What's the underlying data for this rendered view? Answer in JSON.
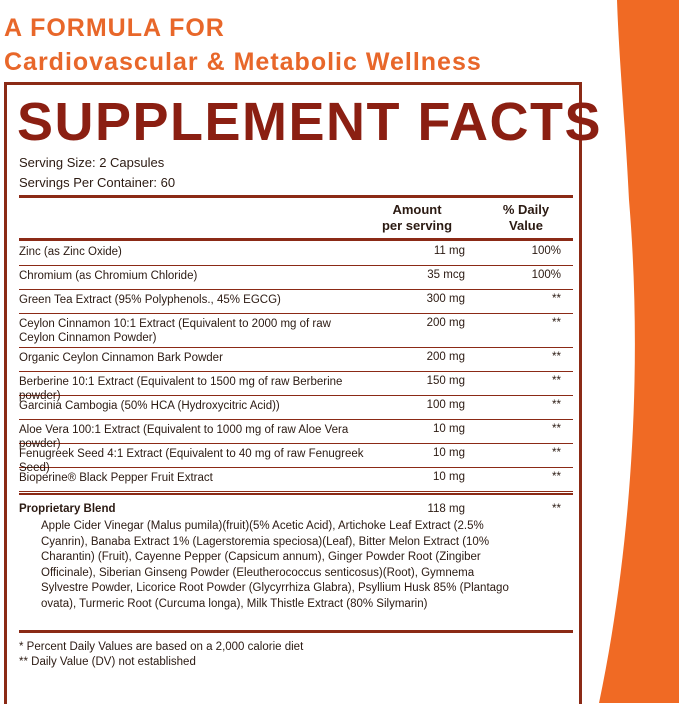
{
  "headline": {
    "line1": "A FORMULA FOR",
    "line2": "Cardiovascular & Metabolic Wellness"
  },
  "colors": {
    "accent_orange": "#f06a24",
    "panel_border": "#8b2a16",
    "title_red": "#8b1f12",
    "headline_orange": "#e8672a"
  },
  "facts": {
    "title": "SUPPLEMENT FACTS",
    "serving_size": "Serving Size: 2 Capsules",
    "servings_per_container": "Servings Per Container: 60",
    "col_amount": "Amount per serving",
    "col_dv": "% Daily Value",
    "rows": [
      {
        "name": "Zinc (as Zinc Oxide)",
        "amount": "11 mg",
        "dv": "100%"
      },
      {
        "name": "Chromium (as Chromium Chloride)",
        "amount": "35 mcg",
        "dv": "100%"
      },
      {
        "name": "Green Tea Extract (95% Polyphenols., 45% EGCG)",
        "amount": "300 mg",
        "dv": "**"
      },
      {
        "name": "Ceylon Cinnamon 10:1 Extract (Equivalent to 2000 mg of raw Ceylon Cinnamon Powder)",
        "amount": "200 mg",
        "dv": "**"
      },
      {
        "name": "Organic Ceylon Cinnamon Bark Powder",
        "amount": "200 mg",
        "dv": "**"
      },
      {
        "name": "Berberine 10:1 Extract (Equivalent to 1500 mg of raw Berberine powder)",
        "amount": "150 mg",
        "dv": "**"
      },
      {
        "name": "Garcinia Cambogia (50% HCA (Hydroxycitric Acid))",
        "amount": "100 mg",
        "dv": "**"
      },
      {
        "name": "Aloe Vera 100:1 Extract (Equivalent to 1000 mg of raw Aloe Vera powder)",
        "amount": "10 mg",
        "dv": "**"
      },
      {
        "name": "Fenugreek Seed 4:1 Extract (Equivalent to 40 mg of raw Fenugreek Seed)",
        "amount": "10 mg",
        "dv": "**"
      },
      {
        "name": "Bioperine® Black Pepper Fruit Extract",
        "amount": "10 mg",
        "dv": "**"
      }
    ],
    "blend": {
      "name": "Proprietary Blend",
      "amount": "118 mg",
      "dv": "**",
      "description": "Apple Cider Vinegar (Malus pumila)(fruit)(5% Acetic Acid), Artichoke Leaf Extract (2.5% Cyanrin), Banaba Extract 1% (Lagerstoremia speciosa)(Leaf), Bitter Melon Extract (10% Charantin) (Fruit), Cayenne Pepper (Capsicum annum), Ginger Powder Root (Zingiber Officinale), Siberian Ginseng Powder (Eleutherococcus senticosus)(Root), Gymnema Sylvestre Powder, Licorice Root Powder (Glycyrrhiza Glabra), Psyllium Husk 85% (Plantago ovata), Turmeric Root (Curcuma longa), Milk Thistle Extract (80% Silymarin)"
    },
    "footnote1": "* Percent Daily Values are based on a 2,000 calorie diet",
    "footnote2": "** Daily Value (DV) not established"
  }
}
